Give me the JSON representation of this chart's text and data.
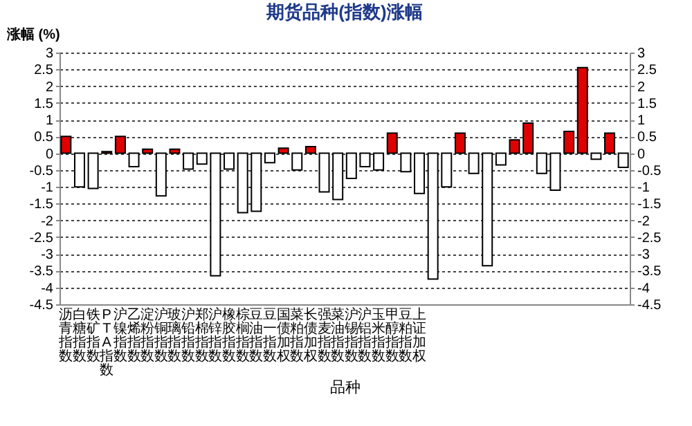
{
  "chart_data": {
    "type": "bar",
    "title": "期货品种(指数)涨幅",
    "ylabel": "涨幅 (%)",
    "xlabel": "品种",
    "categories": [
      "沥青指数",
      "白糖指数",
      "铁矿指数",
      "PTA指数",
      "沪镍指数",
      "乙烯指数",
      "淀粉指数",
      "沪铜指数",
      "玻璃指数",
      "沪铅指数",
      "郑棉指数",
      "沪锌指数",
      "橡胶指数",
      "棕榈指数",
      "豆油指数",
      "豆一指数",
      "国债加权",
      "菜粕指数",
      "长债加权",
      "强麦指数",
      "菜油指数",
      "沪锡指数",
      "沪铝指数",
      "玉米指数",
      "甲醇指数",
      "豆粕指数",
      "上证加权",
      null,
      null,
      null,
      null,
      null,
      null,
      null,
      null,
      null,
      null,
      null,
      null,
      null,
      null,
      null
    ],
    "values": [
      0.5,
      -1.0,
      -1.05,
      0.05,
      0.5,
      -0.4,
      0.12,
      -1.27,
      0.12,
      -0.47,
      -0.32,
      -3.65,
      -0.47,
      -1.77,
      -1.73,
      -0.28,
      0.15,
      -0.5,
      0.2,
      -1.15,
      -1.38,
      -0.75,
      -0.4,
      -0.5,
      0.6,
      -0.55,
      -1.2,
      -3.75,
      -1.0,
      0.6,
      -0.6,
      -3.35,
      -0.35,
      0.4,
      0.9,
      -0.6,
      -1.1,
      0.65,
      2.55,
      -0.18,
      0.6,
      -0.42
    ],
    "colors": [
      "#e00000",
      "#ffffff",
      "#ffffff",
      "#e00000",
      "#e00000",
      "#ffffff",
      "#e00000",
      "#ffffff",
      "#e00000",
      "#ffffff",
      "#ffffff",
      "#ffffff",
      "#ffffff",
      "#ffffff",
      "#ffffff",
      "#ffffff",
      "#e00000",
      "#ffffff",
      "#e00000",
      "#ffffff",
      "#ffffff",
      "#ffffff",
      "#ffffff",
      "#ffffff",
      "#e00000",
      "#ffffff",
      "#ffffff",
      "#ffffff",
      "#ffffff",
      "#e00000",
      "#ffffff",
      "#ffffff",
      "#ffffff",
      "#e00000",
      "#e00000",
      "#ffffff",
      "#ffffff",
      "#e00000",
      "#e00000",
      "#ffffff",
      "#e00000",
      "#ffffff"
    ],
    "ylim": [
      -4.5,
      3
    ],
    "yticks": [
      -4.5,
      -4,
      -3.5,
      -3,
      -2.5,
      -2,
      -1.5,
      -1,
      -0.5,
      0,
      0.5,
      1,
      1.5,
      2,
      2.5,
      3
    ],
    "y2lim": [
      -4.5,
      3
    ],
    "y2ticks": [
      -4.5,
      -4,
      -3.5,
      -3,
      -2.5,
      -2,
      -1.5,
      -1,
      -0.5,
      0,
      0.5,
      1,
      1.5,
      2,
      2.5,
      3
    ],
    "grid": "y"
  }
}
